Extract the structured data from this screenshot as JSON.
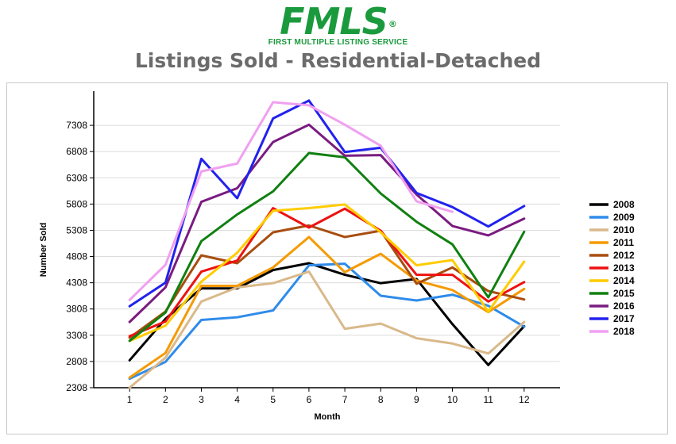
{
  "logo": {
    "text": "FMLS",
    "registered": "®",
    "subtitle": "FIRST MULTIPLE LISTING SERVICE",
    "color": "#1a9a3c"
  },
  "title": "Listings Sold - Residential-Detached",
  "chart_data": {
    "type": "line",
    "title": "Listings Sold - Residential-Detached",
    "xlabel": "Month",
    "ylabel": "Number Sold",
    "x": [
      1,
      2,
      3,
      4,
      5,
      6,
      7,
      8,
      9,
      10,
      11,
      12
    ],
    "yticks": [
      2308,
      2808,
      3308,
      3808,
      4308,
      4808,
      5308,
      5808,
      6308,
      6808,
      7308
    ],
    "ylim": [
      2308,
      7808
    ],
    "xlim": [
      0,
      13
    ],
    "grid": true,
    "legend": "right",
    "series": [
      {
        "name": "2008",
        "color": "#000000",
        "values": [
          2830,
          3620,
          4200,
          4200,
          4550,
          4680,
          4460,
          4300,
          4380,
          3520,
          2740,
          3480
        ]
      },
      {
        "name": "2009",
        "color": "#2e8bea",
        "values": [
          2480,
          2800,
          3600,
          3650,
          3780,
          4640,
          4670,
          4060,
          3970,
          4080,
          3870,
          3470
        ]
      },
      {
        "name": "2010",
        "color": "#d9b98a",
        "values": [
          2310,
          2880,
          3950,
          4220,
          4300,
          4520,
          3430,
          3530,
          3250,
          3150,
          2960,
          3560
        ]
      },
      {
        "name": "2011",
        "color": "#f59a00",
        "values": [
          2500,
          2970,
          4250,
          4250,
          4600,
          5180,
          4510,
          4860,
          4350,
          4170,
          3750,
          4190
        ]
      },
      {
        "name": "2012",
        "color": "#a84d10",
        "values": [
          3260,
          3760,
          4830,
          4680,
          5270,
          5400,
          5180,
          5300,
          4290,
          4600,
          4150,
          3990
        ]
      },
      {
        "name": "2013",
        "color": "#ee1111",
        "values": [
          3290,
          3570,
          4520,
          4730,
          5730,
          5360,
          5720,
          5300,
          4460,
          4460,
          3950,
          4320
        ]
      },
      {
        "name": "2014",
        "color": "#ffcc00",
        "values": [
          3200,
          3490,
          4330,
          4880,
          5680,
          5730,
          5800,
          5270,
          4640,
          4740,
          3760,
          4710
        ]
      },
      {
        "name": "2015",
        "color": "#108010",
        "values": [
          3200,
          3740,
          5100,
          5610,
          6050,
          6780,
          6700,
          6010,
          5470,
          5040,
          4030,
          5280
        ]
      },
      {
        "name": "2016",
        "color": "#7a1b80",
        "values": [
          3560,
          4220,
          5850,
          6110,
          6990,
          7320,
          6730,
          6740,
          5990,
          5390,
          5210,
          5530
        ]
      },
      {
        "name": "2017",
        "color": "#2222ee",
        "values": [
          3860,
          4310,
          6670,
          5920,
          7440,
          7780,
          6800,
          6880,
          6020,
          5750,
          5380,
          5770
        ]
      },
      {
        "name": "2018",
        "color": "#f0a0f0",
        "values": [
          3980,
          4650,
          6430,
          6580,
          7750,
          7690,
          7320,
          6920,
          5860,
          5660,
          null,
          null
        ]
      }
    ]
  }
}
